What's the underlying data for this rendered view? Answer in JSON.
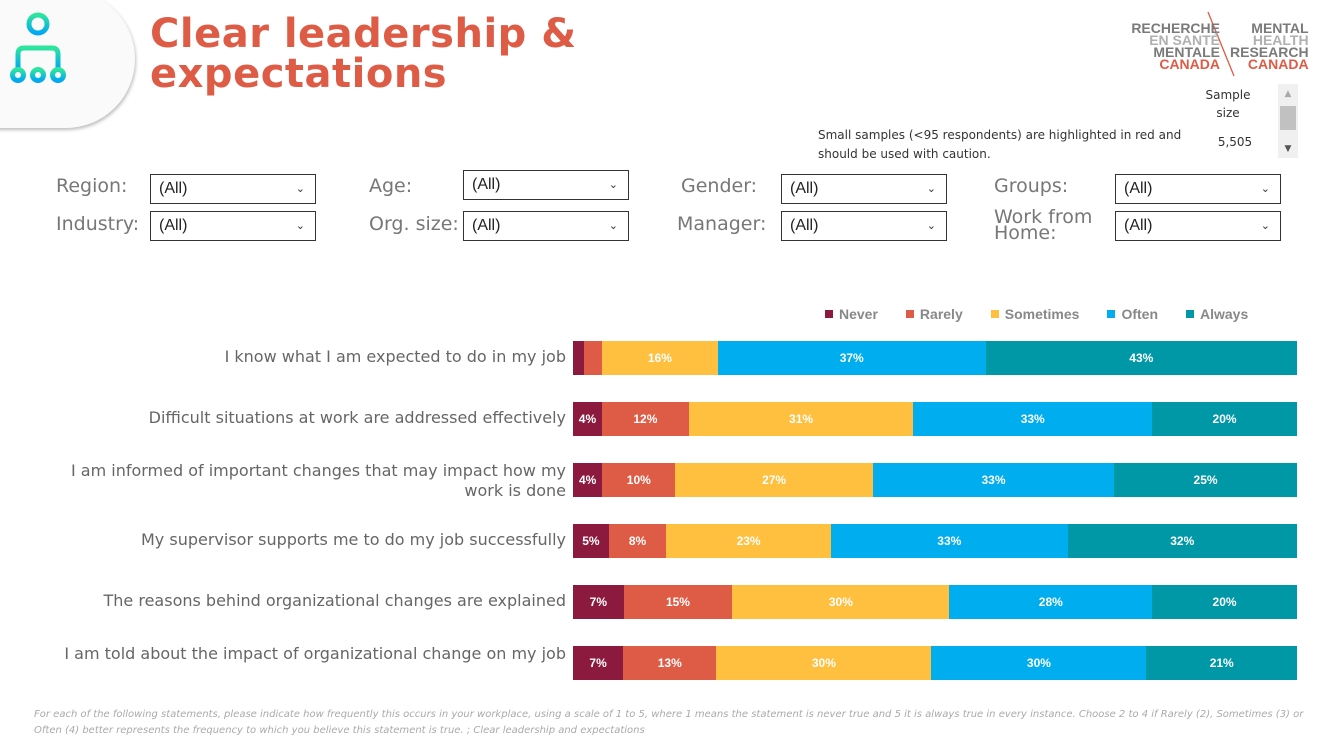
{
  "header": {
    "title_line1": "Clear leadership &",
    "title_line2": "expectations",
    "icon": "org-hierarchy-icon"
  },
  "logo": {
    "left": [
      "RECHERCHE",
      "EN SANTÉ",
      "MENTALE",
      "CANADA"
    ],
    "right": [
      "MENTAL",
      "HEALTH",
      "RESEARCH",
      "CANADA"
    ]
  },
  "sample": {
    "label_line1": "Sample",
    "label_line2": "size",
    "value": "5,505",
    "scroll_up": "▲",
    "scroll_down": "▼"
  },
  "caution_note": "Small samples (<95 respondents) are highlighted in red and should be used with caution.",
  "filters": [
    {
      "label": "Region:",
      "value": "(All)"
    },
    {
      "label": "Age:",
      "value": "(All)"
    },
    {
      "label": "Gender:",
      "value": "(All)"
    },
    {
      "label": "Groups:",
      "value": "(All)"
    },
    {
      "label": "Industry:",
      "value": "(All)"
    },
    {
      "label": "Org. size:",
      "value": "(All)"
    },
    {
      "label": "Manager:",
      "value": "(All)"
    },
    {
      "label_line1": "Work from",
      "label_line2": "Home:",
      "value": "(All)"
    }
  ],
  "chevron": "⌄",
  "chart_data": {
    "type": "bar",
    "orientation": "horizontal-stacked-100",
    "title": "Clear leadership & expectations",
    "legend_position": "top-right",
    "series_names": [
      "Never",
      "Rarely",
      "Sometimes",
      "Often",
      "Always"
    ],
    "colors": [
      "#8B1A3E",
      "#DE5B45",
      "#FFBF3F",
      "#00AEEF",
      "#0097A7"
    ],
    "categories": [
      "I know what I am expected to do in my job",
      "Difficult situations at work are addressed effectively",
      "I am informed of important changes that may impact how my work is done",
      "My supervisor supports me to do my job successfully",
      "The reasons behind organizational changes are explained",
      "I am told about the impact of organizational change on my job"
    ],
    "values": [
      [
        1.5,
        2.5,
        16,
        37,
        43
      ],
      [
        4,
        12,
        31,
        33,
        20
      ],
      [
        4,
        10,
        27,
        33,
        25
      ],
      [
        5,
        8,
        23,
        33,
        32
      ],
      [
        7,
        15,
        30,
        28,
        20
      ],
      [
        7,
        13,
        30,
        30,
        21
      ]
    ],
    "labels": [
      [
        "",
        "",
        "16%",
        "37%",
        "43%"
      ],
      [
        "4%",
        "12%",
        "31%",
        "33%",
        "20%"
      ],
      [
        "4%",
        "10%",
        "27%",
        "33%",
        "25%"
      ],
      [
        "5%",
        "8%",
        "23%",
        "33%",
        "32%"
      ],
      [
        "7%",
        "15%",
        "30%",
        "28%",
        "20%"
      ],
      [
        "7%",
        "13%",
        "30%",
        "30%",
        "21%"
      ]
    ],
    "xlim": [
      0,
      100
    ],
    "unit": "%"
  },
  "footnote": "For each of the following statements, please indicate how frequently this occurs in your workplace, using a scale of 1 to 5, where 1 means the statement is never true and 5 it is always true in every instance.  Choose 2 to 4 if Rarely (2), Sometimes (3) or Often (4) better represents the frequency to which you believe this statement is true. ; Clear leadership and expectations"
}
